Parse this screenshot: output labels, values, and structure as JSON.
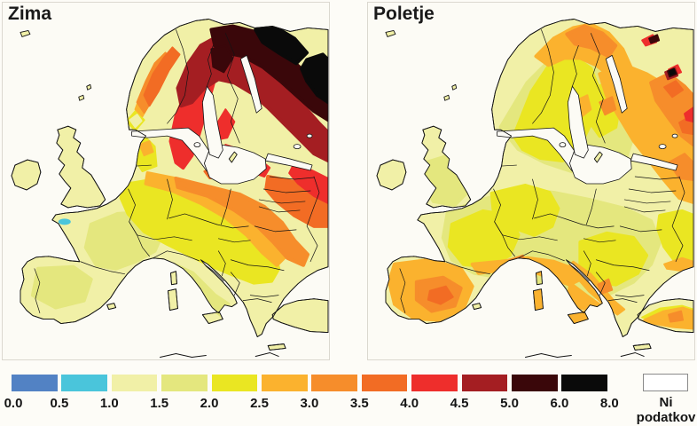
{
  "panels": [
    {
      "id": "zima",
      "title": "Zima"
    },
    {
      "id": "poletje",
      "title": "Poletje"
    }
  ],
  "legend": {
    "boundaries": [
      "0.0",
      "0.5",
      "1.0",
      "1.5",
      "2.0",
      "2.5",
      "3.0",
      "3.5",
      "4.0",
      "4.5",
      "5.0",
      "6.0",
      "8.0"
    ],
    "colors": [
      "#5282C4",
      "#4AC5DB",
      "#F1F0A7",
      "#E4E77E",
      "#EAE622",
      "#FBB22E",
      "#F68D2B",
      "#F26C24",
      "#EE2E2C",
      "#A41E22",
      "#3A070A",
      "#0A0A0A"
    ],
    "no_data_label": "Ni podatkov",
    "no_data_color": "#FFFFFF"
  },
  "chart_data": {
    "type": "heatmap",
    "scale_values": [
      0.0,
      0.5,
      1.0,
      1.5,
      2.0,
      2.5,
      3.0,
      3.5,
      4.0,
      4.5,
      5.0,
      6.0,
      8.0
    ],
    "no_data": "Ni podatkov",
    "maps": [
      {
        "title": "Zima",
        "regions": [
          {
            "region": "British Isles",
            "value": "1.0-1.5"
          },
          {
            "region": "Western France, Iberia, Greece, Turkey",
            "value": "1.5-2.0"
          },
          {
            "region": "Brittany coastal spot",
            "value": "0.5-1.0"
          },
          {
            "region": "Central Europe, Italy, Balkans",
            "value": "2.0-2.5"
          },
          {
            "region": "Poland, Hungary, Romania, Ukraine",
            "value": "2.5-3.5"
          },
          {
            "region": "Baltic states, Belarus, western Russia",
            "value": "3.5-4.5"
          },
          {
            "region": "Southern Scandinavia, Denmark",
            "value": "2.5-3.5"
          },
          {
            "region": "Central Sweden, southern Finland",
            "value": "4.0-5.0"
          },
          {
            "region": "Northern Scandinavia",
            "value": "5.0-6.0"
          },
          {
            "region": "Far north-east (Lapland, Kola, NW Russia)",
            "value": "6.0-8.0"
          }
        ]
      },
      {
        "title": "Poletje",
        "regions": [
          {
            "region": "British Isles, Poland, Baltics, Belarus",
            "value": "1.0-2.0"
          },
          {
            "region": "France, Germany, central Europe, southern Scandinavia",
            "value": "2.0-2.5"
          },
          {
            "region": "Mediterranean coasts, Italy, Balkans, Turkey",
            "value": "2.5-3.5"
          },
          {
            "region": "Iberian interior",
            "value": "3.0-4.0"
          },
          {
            "region": "Northern Scandinavia, Finland, NW Russia",
            "value": "2.5-3.5"
          },
          {
            "region": "Far north-east hotspots",
            "value": "4.0-8.0"
          }
        ]
      }
    ]
  }
}
